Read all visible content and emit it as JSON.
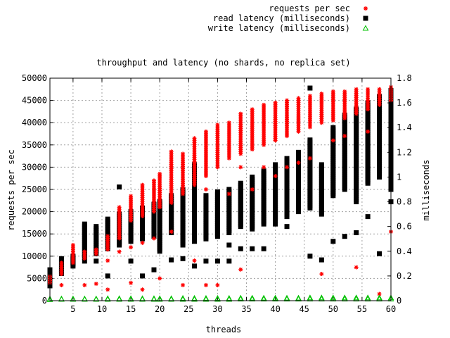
{
  "chart_data": {
    "type": "scatter",
    "title": "throughput and latency (no shards, no replica set)",
    "xlabel": "threads",
    "ylabel": "requests per sec",
    "y2label": "milliseconds",
    "xlim": [
      1,
      60
    ],
    "ylim": [
      0,
      50000
    ],
    "y2lim": [
      0,
      1.8
    ],
    "xticks": [
      "5",
      "10",
      "15",
      "20",
      "25",
      "30",
      "35",
      "40",
      "45",
      "50",
      "55",
      "60"
    ],
    "yticks": [
      "0",
      "5000",
      "10000",
      "15000",
      "20000",
      "25000",
      "30000",
      "35000",
      "40000",
      "45000",
      "50000"
    ],
    "y2ticks": [
      "0",
      "0.2",
      "0.4",
      "0.6",
      "0.8",
      "1",
      "1.2",
      "1.4",
      "1.6",
      "1.8"
    ],
    "grid": true,
    "legend_position": "top-right",
    "series": [
      {
        "name": "requests per sec",
        "axis": "y",
        "marker": "star",
        "color": "#ff0000",
        "summary": [
          {
            "x": 1,
            "lo": 4000,
            "hi": 5500,
            "out": []
          },
          {
            "x": 3,
            "lo": 6000,
            "hi": 8500,
            "out": [
              3500
            ]
          },
          {
            "x": 5,
            "lo": 8500,
            "hi": 12500,
            "out": []
          },
          {
            "x": 7,
            "lo": 9500,
            "hi": 11000,
            "out": [
              3500
            ]
          },
          {
            "x": 9,
            "lo": 10500,
            "hi": 11500,
            "out": [
              3800
            ]
          },
          {
            "x": 11,
            "lo": 11500,
            "hi": 14500,
            "out": [
              2500,
              9000
            ]
          },
          {
            "x": 13,
            "lo": 14000,
            "hi": 21000,
            "out": [
              11000
            ]
          },
          {
            "x": 15,
            "lo": 18000,
            "hi": 23500,
            "out": [
              12000,
              4000
            ]
          },
          {
            "x": 17,
            "lo": 19000,
            "hi": 26000,
            "out": [
              13000,
              2500
            ]
          },
          {
            "x": 19,
            "lo": 20000,
            "hi": 27000,
            "out": [
              14000
            ]
          },
          {
            "x": 20,
            "lo": 21000,
            "hi": 28500,
            "out": [
              5000
            ]
          },
          {
            "x": 22,
            "lo": 22000,
            "hi": 33500,
            "out": [
              15500
            ]
          },
          {
            "x": 24,
            "lo": 24000,
            "hi": 33000,
            "out": [
              3500
            ]
          },
          {
            "x": 26,
            "lo": 26000,
            "hi": 36500,
            "out": [
              9000
            ]
          },
          {
            "x": 28,
            "lo": 28000,
            "hi": 38000,
            "out": [
              3500,
              25000
            ]
          },
          {
            "x": 30,
            "lo": 30000,
            "hi": 39500,
            "out": [
              3500
            ]
          },
          {
            "x": 32,
            "lo": 32000,
            "hi": 40000,
            "out": [
              24000
            ]
          },
          {
            "x": 34,
            "lo": 33000,
            "hi": 42000,
            "out": [
              7000,
              30000
            ]
          },
          {
            "x": 36,
            "lo": 34000,
            "hi": 43000,
            "out": [
              25000
            ]
          },
          {
            "x": 38,
            "lo": 35000,
            "hi": 44000,
            "out": [
              30000
            ]
          },
          {
            "x": 40,
            "lo": 36000,
            "hi": 44500,
            "out": [
              28000
            ]
          },
          {
            "x": 42,
            "lo": 37000,
            "hi": 45000,
            "out": [
              30000
            ]
          },
          {
            "x": 44,
            "lo": 38000,
            "hi": 45500,
            "out": [
              31000
            ]
          },
          {
            "x": 46,
            "lo": 39000,
            "hi": 46000,
            "out": [
              32000
            ]
          },
          {
            "x": 48,
            "lo": 40000,
            "hi": 46500,
            "out": [
              6000
            ]
          },
          {
            "x": 50,
            "lo": 40500,
            "hi": 47000,
            "out": [
              36000
            ]
          },
          {
            "x": 52,
            "lo": 41000,
            "hi": 47000,
            "out": [
              37000
            ]
          },
          {
            "x": 54,
            "lo": 42000,
            "hi": 47500,
            "out": [
              7500
            ]
          },
          {
            "x": 56,
            "lo": 43000,
            "hi": 47500,
            "out": [
              38000
            ]
          },
          {
            "x": 58,
            "lo": 44000,
            "hi": 47500,
            "out": [
              1500
            ]
          },
          {
            "x": 60,
            "lo": 45000,
            "hi": 48000,
            "out": [
              15500
            ]
          }
        ]
      },
      {
        "name": "read latency (milliseconds)",
        "axis": "y2",
        "marker": "square",
        "color": "#000000",
        "summary": [
          {
            "x": 1,
            "lo": 0.12,
            "hi": 0.25,
            "out": []
          },
          {
            "x": 3,
            "lo": 0.22,
            "hi": 0.34,
            "out": []
          },
          {
            "x": 5,
            "lo": 0.28,
            "hi": 0.36,
            "out": []
          },
          {
            "x": 7,
            "lo": 0.35,
            "hi": 0.62,
            "out": [
              0.32
            ]
          },
          {
            "x": 9,
            "lo": 0.38,
            "hi": 0.6,
            "out": [
              0.32
            ]
          },
          {
            "x": 11,
            "lo": 0.42,
            "hi": 0.66,
            "out": [
              0.2
            ]
          },
          {
            "x": 13,
            "lo": 0.45,
            "hi": 0.7,
            "out": [
              0.92
            ]
          },
          {
            "x": 15,
            "lo": 0.48,
            "hi": 0.72,
            "out": [
              0.32
            ]
          },
          {
            "x": 17,
            "lo": 0.5,
            "hi": 0.75,
            "out": [
              0.2
            ]
          },
          {
            "x": 19,
            "lo": 0.52,
            "hi": 0.78,
            "out": [
              0.25
            ]
          },
          {
            "x": 20,
            "lo": 0.4,
            "hi": 0.8,
            "out": []
          },
          {
            "x": 22,
            "lo": 0.55,
            "hi": 0.85,
            "out": [
              0.33
            ]
          },
          {
            "x": 24,
            "lo": 0.45,
            "hi": 0.9,
            "out": [
              0.34
            ]
          },
          {
            "x": 26,
            "lo": 0.48,
            "hi": 1.1,
            "out": [
              0.28
            ]
          },
          {
            "x": 28,
            "lo": 0.5,
            "hi": 0.85,
            "out": [
              0.32
            ]
          },
          {
            "x": 30,
            "lo": 0.52,
            "hi": 0.88,
            "out": [
              0.32
            ]
          },
          {
            "x": 32,
            "lo": 0.55,
            "hi": 0.9,
            "out": [
              0.32,
              0.45
            ]
          },
          {
            "x": 34,
            "lo": 0.6,
            "hi": 0.95,
            "out": [
              0.42
            ]
          },
          {
            "x": 36,
            "lo": 0.58,
            "hi": 1.0,
            "out": [
              0.42
            ]
          },
          {
            "x": 38,
            "lo": 0.62,
            "hi": 1.05,
            "out": [
              0.42
            ]
          },
          {
            "x": 40,
            "lo": 0.65,
            "hi": 1.1,
            "out": [
              0.62
            ]
          },
          {
            "x": 42,
            "lo": 0.68,
            "hi": 1.15,
            "out": [
              0.6
            ]
          },
          {
            "x": 44,
            "lo": 0.72,
            "hi": 1.2,
            "out": []
          },
          {
            "x": 46,
            "lo": 0.75,
            "hi": 1.3,
            "out": [
              0.36,
              1.72
            ]
          },
          {
            "x": 48,
            "lo": 0.7,
            "hi": 1.1,
            "out": [
              0.33
            ]
          },
          {
            "x": 50,
            "lo": 0.85,
            "hi": 1.4,
            "out": [
              0.48
            ]
          },
          {
            "x": 52,
            "lo": 0.9,
            "hi": 1.5,
            "out": [
              0.52
            ]
          },
          {
            "x": 54,
            "lo": 0.8,
            "hi": 1.55,
            "out": [
              0.55
            ]
          },
          {
            "x": 56,
            "lo": 0.95,
            "hi": 1.6,
            "out": [
              0.68
            ]
          },
          {
            "x": 58,
            "lo": 1.0,
            "hi": 1.65,
            "out": [
              0.38
            ]
          },
          {
            "x": 60,
            "lo": 0.9,
            "hi": 1.7,
            "out": [
              0.8
            ]
          }
        ]
      },
      {
        "name": "write latency (milliseconds)",
        "axis": "y2",
        "marker": "triangle",
        "color": "#00c000",
        "summary": [
          {
            "x": 1,
            "lo": 0.01,
            "hi": 0.015,
            "out": []
          },
          {
            "x": 3,
            "lo": 0.012,
            "hi": 0.016,
            "out": []
          },
          {
            "x": 5,
            "lo": 0.012,
            "hi": 0.016,
            "out": []
          },
          {
            "x": 7,
            "lo": 0.012,
            "hi": 0.016,
            "out": []
          },
          {
            "x": 9,
            "lo": 0.012,
            "hi": 0.016,
            "out": []
          },
          {
            "x": 11,
            "lo": 0.012,
            "hi": 0.018,
            "out": []
          },
          {
            "x": 13,
            "lo": 0.012,
            "hi": 0.018,
            "out": []
          },
          {
            "x": 15,
            "lo": 0.012,
            "hi": 0.018,
            "out": []
          },
          {
            "x": 17,
            "lo": 0.012,
            "hi": 0.018,
            "out": []
          },
          {
            "x": 19,
            "lo": 0.012,
            "hi": 0.018,
            "out": []
          },
          {
            "x": 20,
            "lo": 0.012,
            "hi": 0.018,
            "out": []
          },
          {
            "x": 22,
            "lo": 0.012,
            "hi": 0.018,
            "out": []
          },
          {
            "x": 24,
            "lo": 0.012,
            "hi": 0.02,
            "out": []
          },
          {
            "x": 26,
            "lo": 0.012,
            "hi": 0.02,
            "out": []
          },
          {
            "x": 28,
            "lo": 0.012,
            "hi": 0.02,
            "out": []
          },
          {
            "x": 30,
            "lo": 0.012,
            "hi": 0.02,
            "out": []
          },
          {
            "x": 32,
            "lo": 0.012,
            "hi": 0.02,
            "out": []
          },
          {
            "x": 34,
            "lo": 0.014,
            "hi": 0.022,
            "out": []
          },
          {
            "x": 36,
            "lo": 0.014,
            "hi": 0.022,
            "out": []
          },
          {
            "x": 38,
            "lo": 0.014,
            "hi": 0.022,
            "out": []
          },
          {
            "x": 40,
            "lo": 0.014,
            "hi": 0.022,
            "out": []
          },
          {
            "x": 42,
            "lo": 0.014,
            "hi": 0.022,
            "out": []
          },
          {
            "x": 44,
            "lo": 0.014,
            "hi": 0.022,
            "out": []
          },
          {
            "x": 46,
            "lo": 0.014,
            "hi": 0.024,
            "out": []
          },
          {
            "x": 48,
            "lo": 0.014,
            "hi": 0.024,
            "out": []
          },
          {
            "x": 50,
            "lo": 0.014,
            "hi": 0.024,
            "out": []
          },
          {
            "x": 52,
            "lo": 0.014,
            "hi": 0.024,
            "out": []
          },
          {
            "x": 54,
            "lo": 0.014,
            "hi": 0.024,
            "out": []
          },
          {
            "x": 56,
            "lo": 0.014,
            "hi": 0.024,
            "out": []
          },
          {
            "x": 58,
            "lo": 0.014,
            "hi": 0.024,
            "out": []
          },
          {
            "x": 60,
            "lo": 0.014,
            "hi": 0.024,
            "out": []
          }
        ]
      }
    ]
  }
}
